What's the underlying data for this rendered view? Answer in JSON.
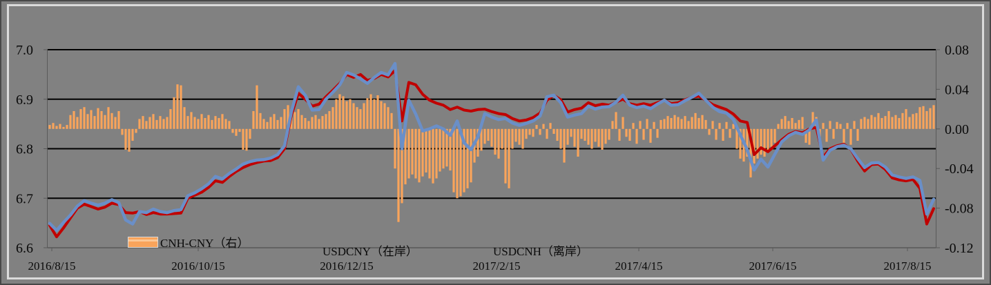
{
  "chart_data": {
    "type": "combo-bar-line",
    "title": "",
    "x_axis": {
      "ticks": [
        "2016/8/15",
        "2016/10/15",
        "2016/12/15",
        "2017/2/15",
        "2017/4/15",
        "2017/6/15",
        "2017/8/15"
      ]
    },
    "left_axis": {
      "min": 6.6,
      "max": 7.0,
      "ticks": [
        "7.0",
        "6.9",
        "6.8",
        "6.7",
        "6.6"
      ]
    },
    "right_axis": {
      "min": -0.12,
      "max": 0.08,
      "ticks": [
        "0.08",
        "0.04",
        "0.00",
        "-0.04",
        "-0.08",
        "-0.12"
      ]
    },
    "grid": "horizontal-black",
    "legend_position": "bottom-inside",
    "series": [
      {
        "name": "CNH-CNY（右）",
        "type": "bar",
        "axis": "right",
        "color": "#F9A45B",
        "values": [
          0.004,
          0.006,
          0.003,
          0.005,
          0.002,
          0.004,
          0.014,
          0.018,
          0.012,
          0.02,
          0.022,
          0.015,
          0.019,
          0.013,
          0.021,
          0.018,
          0.014,
          0.022,
          0.016,
          0.012,
          0.018,
          -0.006,
          -0.021,
          -0.023,
          -0.012,
          -0.004,
          0.01,
          0.013,
          0.008,
          0.012,
          0.015,
          0.009,
          0.013,
          0.01,
          0.012,
          0.02,
          0.032,
          0.045,
          0.044,
          0.022,
          0.013,
          0.017,
          0.012,
          0.01,
          0.015,
          0.011,
          0.014,
          0.009,
          0.013,
          0.011,
          0.015,
          0.01,
          0.008,
          -0.004,
          -0.007,
          -0.003,
          -0.021,
          -0.022,
          -0.01,
          0.018,
          0.044,
          0.016,
          0.01,
          0.007,
          0.012,
          0.015,
          0.009,
          0.012,
          0.02,
          0.024,
          0.02,
          0.017,
          0.02,
          0.014,
          0.011,
          0.008,
          0.012,
          0.014,
          0.01,
          0.013,
          0.015,
          0.018,
          0.022,
          0.03,
          0.035,
          0.033,
          0.028,
          0.03,
          0.026,
          0.022,
          0.02,
          0.026,
          0.031,
          0.035,
          0.03,
          0.034,
          0.028,
          0.026,
          0.022,
          0.016,
          -0.04,
          -0.094,
          -0.075,
          -0.056,
          -0.05,
          -0.046,
          -0.05,
          -0.054,
          -0.048,
          -0.044,
          -0.05,
          -0.055,
          -0.05,
          -0.043,
          -0.04,
          -0.038,
          -0.042,
          -0.064,
          -0.07,
          -0.068,
          -0.064,
          -0.06,
          -0.054,
          -0.034,
          -0.028,
          -0.022,
          -0.015,
          -0.012,
          -0.018,
          -0.026,
          -0.03,
          -0.02,
          -0.055,
          -0.06,
          -0.02,
          -0.013,
          -0.016,
          -0.02,
          -0.01,
          -0.006,
          -0.008,
          0.004,
          -0.006,
          0.005,
          -0.01,
          0.006,
          -0.005,
          -0.012,
          -0.02,
          -0.034,
          -0.016,
          -0.008,
          -0.018,
          -0.028,
          -0.01,
          -0.012,
          -0.016,
          -0.02,
          -0.013,
          -0.018,
          -0.021,
          -0.015,
          -0.011,
          0.008,
          0.017,
          -0.012,
          0.012,
          -0.008,
          -0.012,
          0.006,
          -0.015,
          0.008,
          -0.011,
          0.01,
          -0.014,
          0.007,
          -0.009,
          0.009,
          0.01,
          0.013,
          0.011,
          0.014,
          0.012,
          0.01,
          0.013,
          0.008,
          0.012,
          0.016,
          0.011,
          0.014,
          0.009,
          -0.006,
          0.008,
          -0.011,
          0.006,
          -0.012,
          0.007,
          -0.009,
          0.005,
          -0.02,
          -0.03,
          -0.033,
          -0.028,
          -0.049,
          -0.035,
          -0.03,
          -0.026,
          -0.028,
          -0.022,
          -0.018,
          -0.014,
          0.005,
          0.01,
          0.013,
          0.008,
          0.011,
          0.006,
          0.009,
          0.012,
          -0.014,
          -0.016,
          0.017,
          0.012,
          -0.008,
          0.006,
          -0.013,
          0.008,
          -0.01,
          0.007,
          0.005,
          -0.014,
          0.006,
          -0.016,
          0.008,
          -0.012,
          0.01,
          0.012,
          0.01,
          0.014,
          0.012,
          0.016,
          0.011,
          0.013,
          0.018,
          0.012,
          0.014,
          0.011,
          0.016,
          0.02,
          0.012,
          0.015,
          0.016,
          0.022,
          0.023,
          0.018,
          0.021,
          0.024
        ]
      },
      {
        "name": "USDCNY（在岸）",
        "type": "line",
        "axis": "left",
        "color": "#C00000",
        "values": [
          6.645,
          6.622,
          6.64,
          6.66,
          6.68,
          6.688,
          6.683,
          6.678,
          6.682,
          6.69,
          6.687,
          6.671,
          6.67,
          6.673,
          6.667,
          6.671,
          6.668,
          6.668,
          6.669,
          6.67,
          6.7,
          6.706,
          6.712,
          6.722,
          6.735,
          6.732,
          6.744,
          6.754,
          6.762,
          6.768,
          6.772,
          6.775,
          6.776,
          6.782,
          6.8,
          6.868,
          6.912,
          6.9,
          6.886,
          6.89,
          6.905,
          6.918,
          6.932,
          6.95,
          6.944,
          6.95,
          6.938,
          6.942,
          6.95,
          6.945,
          6.958,
          6.856,
          6.934,
          6.929,
          6.91,
          6.898,
          6.892,
          6.888,
          6.879,
          6.884,
          6.878,
          6.876,
          6.879,
          6.88,
          6.875,
          6.871,
          6.869,
          6.861,
          6.856,
          6.858,
          6.863,
          6.872,
          6.898,
          6.908,
          6.899,
          6.874,
          6.879,
          6.882,
          6.893,
          6.887,
          6.89,
          6.888,
          6.894,
          6.9,
          6.891,
          6.888,
          6.891,
          6.888,
          6.893,
          6.898,
          6.891,
          6.893,
          6.899,
          6.904,
          6.906,
          6.898,
          6.889,
          6.884,
          6.879,
          6.87,
          6.856,
          6.853,
          6.788,
          6.802,
          6.794,
          6.806,
          6.818,
          6.829,
          6.835,
          6.832,
          6.84,
          6.843,
          6.783,
          6.8,
          6.806,
          6.809,
          6.799,
          6.775,
          6.755,
          6.768,
          6.769,
          6.758,
          6.741,
          6.737,
          6.735,
          6.738,
          6.72,
          6.648,
          6.679
        ]
      },
      {
        "name": "USDCNH（离岸）",
        "type": "line",
        "axis": "left",
        "color": "#6A8FC8",
        "values": [
          6.649,
          6.635,
          6.651,
          6.666,
          6.684,
          6.695,
          6.69,
          6.686,
          6.69,
          6.697,
          6.691,
          6.656,
          6.648,
          6.673,
          6.671,
          6.678,
          6.673,
          6.671,
          6.675,
          6.677,
          6.705,
          6.711,
          6.719,
          6.729,
          6.744,
          6.739,
          6.75,
          6.759,
          6.769,
          6.774,
          6.777,
          6.778,
          6.781,
          6.788,
          6.806,
          6.875,
          6.925,
          6.908,
          6.878,
          6.879,
          6.9,
          6.914,
          6.929,
          6.954,
          6.949,
          6.941,
          6.932,
          6.944,
          6.954,
          6.949,
          6.972,
          6.8,
          6.898,
          6.87,
          6.836,
          6.84,
          6.846,
          6.84,
          6.827,
          6.856,
          6.812,
          6.798,
          6.824,
          6.871,
          6.864,
          6.859,
          6.861,
          6.852,
          6.847,
          6.851,
          6.856,
          6.866,
          6.905,
          6.908,
          6.893,
          6.864,
          6.868,
          6.871,
          6.886,
          6.88,
          6.884,
          6.885,
          6.894,
          6.908,
          6.888,
          6.883,
          6.886,
          6.881,
          6.89,
          6.898,
          6.888,
          6.889,
          6.897,
          6.904,
          6.912,
          6.898,
          6.884,
          6.875,
          6.872,
          6.859,
          6.828,
          6.798,
          6.757,
          6.779,
          6.763,
          6.789,
          6.814,
          6.826,
          6.833,
          6.829,
          6.838,
          6.858,
          6.777,
          6.797,
          6.804,
          6.807,
          6.8,
          6.78,
          6.762,
          6.771,
          6.772,
          6.763,
          6.747,
          6.743,
          6.74,
          6.743,
          6.736,
          6.668,
          6.698
        ]
      }
    ]
  },
  "legend": {
    "bar_label": "CNH-CNY（右）",
    "cny_label": "USDCNY（在岸）",
    "cnh_label": "USDCNH（离岸）"
  },
  "colors": {
    "background": "#818181",
    "frame": "#DBDBDB",
    "gridline": "#000000",
    "axis_line": "#595959",
    "bar": "#F9A45B",
    "cny_line": "#C00000",
    "cnh_line": "#6A8FC8",
    "text": "#0a0a0a"
  }
}
